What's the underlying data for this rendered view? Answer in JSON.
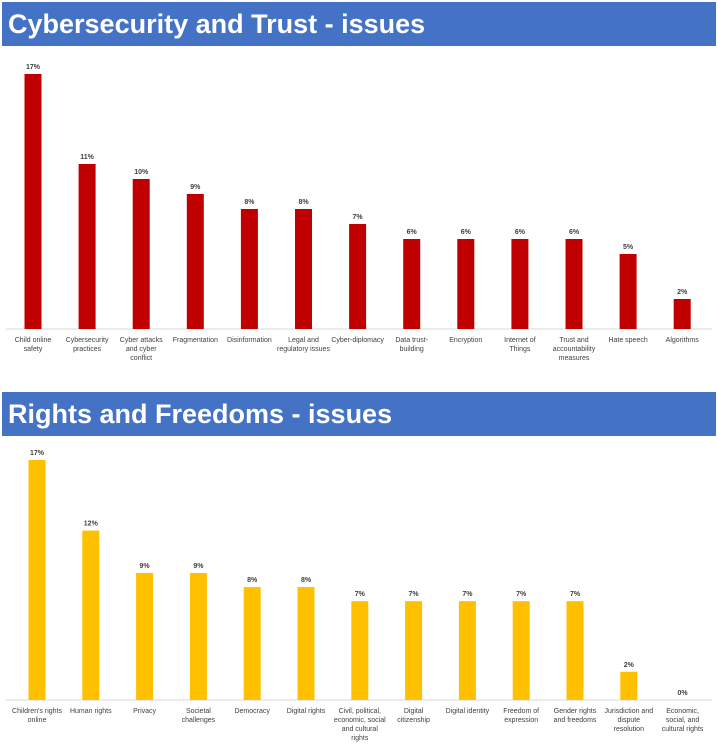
{
  "chart_data": [
    {
      "type": "bar",
      "title": "Cybersecurity and Trust - issues",
      "color": "#C00000",
      "categories": [
        [
          "Child online",
          "safety"
        ],
        [
          "Cybersecurity",
          "practices"
        ],
        [
          "Cyber attacks",
          "and cyber",
          "conflict"
        ],
        [
          "Fragmentation"
        ],
        [
          "Disinformation"
        ],
        [
          "Legal and",
          "regulatory issues"
        ],
        [
          "Cyber-diplomacy"
        ],
        [
          "Data trust-",
          "building"
        ],
        [
          "Encryption"
        ],
        [
          "Internet of",
          "Things"
        ],
        [
          "Trust and",
          "accountability",
          "measures"
        ],
        [
          "Hate speech"
        ],
        [
          "Algorithms"
        ]
      ],
      "values": [
        17,
        11,
        10,
        9,
        8,
        8,
        7,
        6,
        6,
        6,
        6,
        5,
        2
      ],
      "unit": "%",
      "ylim": [
        0,
        17
      ],
      "grid": false
    },
    {
      "type": "bar",
      "title": "Rights and Freedoms - issues",
      "color": "#FFC000",
      "categories": [
        [
          "Children's rights",
          "online"
        ],
        [
          "Human rights"
        ],
        [
          "Privacy"
        ],
        [
          "Societal",
          "challenges"
        ],
        [
          "Democracy"
        ],
        [
          "Digital rights"
        ],
        [
          "Civil, political,",
          "economic, social",
          "and cultural",
          "rights"
        ],
        [
          "Digital",
          "citizenship"
        ],
        [
          "Digital identity"
        ],
        [
          "Freedom of",
          "expression"
        ],
        [
          "Gender rights",
          "and freedoms"
        ],
        [
          "Jurisdiction and",
          "dispute",
          "resolution"
        ],
        [
          "Economic,",
          "social, and",
          "cultural rights"
        ]
      ],
      "values": [
        17,
        12,
        9,
        9,
        8,
        8,
        7,
        7,
        7,
        7,
        7,
        2,
        0
      ],
      "unit": "%",
      "ylim": [
        0,
        17
      ],
      "grid": false
    }
  ]
}
